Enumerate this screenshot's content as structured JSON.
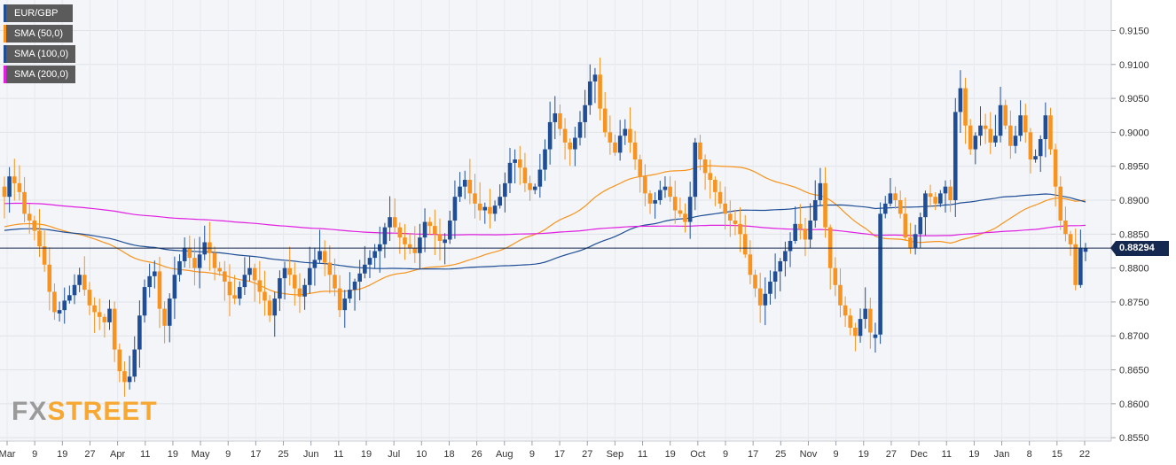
{
  "legend": [
    {
      "label": "EUR/GBP",
      "color": "#1f4e96"
    },
    {
      "label": "SMA (50,0)",
      "color": "#f7931e"
    },
    {
      "label": "SMA (100,0)",
      "color": "#1f4e96"
    },
    {
      "label": "SMA (200,0)",
      "color": "#e020e0"
    }
  ],
  "current_price": "0.88294",
  "logo": {
    "fx": "FX",
    "street": "STREET"
  },
  "chart_data": {
    "type": "candlestick",
    "symbol": "EUR/GBP",
    "timeframe": "daily",
    "ylim": [
      0.8545,
      0.9195
    ],
    "yticks": [
      "0.9150",
      "0.9100",
      "0.9050",
      "0.9000",
      "0.8950",
      "0.8900",
      "0.8850",
      "0.8800",
      "0.8750",
      "0.8700",
      "0.8650",
      "0.8600",
      "0.8550"
    ],
    "xticks": [
      "Mar",
      "9",
      "19",
      "27",
      "Apr",
      "11",
      "19",
      "May",
      "9",
      "17",
      "25",
      "Jun",
      "11",
      "19",
      "Jul",
      "10",
      "18",
      "26",
      "Aug",
      "9",
      "17",
      "27",
      "Sep",
      "11",
      "19",
      "Oct",
      "9",
      "17",
      "25",
      "Nov",
      "9",
      "19",
      "27",
      "Dec",
      "11",
      "19",
      "Jan",
      "8",
      "15",
      "22"
    ],
    "current_price": 0.88294,
    "up_color": "#1f4e96",
    "down_color": "#f7931e",
    "closes": [
      0.8905,
      0.8935,
      0.8925,
      0.8912,
      0.888,
      0.887,
      0.8855,
      0.8832,
      0.8805,
      0.8765,
      0.8735,
      0.8738,
      0.8752,
      0.876,
      0.8775,
      0.879,
      0.8768,
      0.8745,
      0.8735,
      0.8728,
      0.872,
      0.874,
      0.868,
      0.8648,
      0.8632,
      0.864,
      0.868,
      0.873,
      0.8772,
      0.8788,
      0.8795,
      0.874,
      0.8715,
      0.8755,
      0.879,
      0.881,
      0.883,
      0.8815,
      0.88,
      0.882,
      0.8838,
      0.8822,
      0.88,
      0.8795,
      0.878,
      0.876,
      0.8755,
      0.8772,
      0.879,
      0.88,
      0.8782,
      0.8765,
      0.8752,
      0.873,
      0.8755,
      0.8785,
      0.88,
      0.879,
      0.877,
      0.8758,
      0.8775,
      0.88,
      0.8812,
      0.8825,
      0.8808,
      0.879,
      0.877,
      0.8738,
      0.8755,
      0.8768,
      0.878,
      0.8792,
      0.8805,
      0.8815,
      0.8825,
      0.8835,
      0.886,
      0.8875,
      0.886,
      0.8845,
      0.8835,
      0.883,
      0.8822,
      0.8845,
      0.8868,
      0.8862,
      0.885,
      0.884,
      0.8842,
      0.887,
      0.8905,
      0.892,
      0.893,
      0.891,
      0.8895,
      0.8885,
      0.889,
      0.888,
      0.8892,
      0.8905,
      0.8925,
      0.8955,
      0.896,
      0.8948,
      0.8925,
      0.8915,
      0.892,
      0.8945,
      0.8975,
      0.9015,
      0.9028,
      0.9005,
      0.8985,
      0.8975,
      0.8992,
      0.9015,
      0.904,
      0.9075,
      0.9085,
      0.9035,
      0.9,
      0.8985,
      0.897,
      0.8995,
      0.9005,
      0.8985,
      0.896,
      0.8935,
      0.891,
      0.8895,
      0.89,
      0.8915,
      0.892,
      0.8905,
      0.8885,
      0.888,
      0.8868,
      0.8905,
      0.8985,
      0.896,
      0.894,
      0.893,
      0.8912,
      0.8895,
      0.888,
      0.887,
      0.8865,
      0.885,
      0.882,
      0.879,
      0.877,
      0.8745,
      0.8762,
      0.878,
      0.8795,
      0.881,
      0.8825,
      0.884,
      0.8865,
      0.8858,
      0.8842,
      0.887,
      0.89,
      0.8925,
      0.886,
      0.88,
      0.8775,
      0.8745,
      0.873,
      0.8712,
      0.87,
      0.8725,
      0.874,
      0.8705,
      0.8702,
      0.888,
      0.8895,
      0.891,
      0.89,
      0.888,
      0.8845,
      0.883,
      0.885,
      0.8875,
      0.891,
      0.8905,
      0.8895,
      0.891,
      0.892,
      0.89,
      0.903,
      0.9065,
      0.901,
      0.8975,
      0.8995,
      0.901,
      0.9005,
      0.8985,
      0.8995,
      0.904,
      0.901,
      0.898,
      0.8995,
      0.9025,
      0.9,
      0.896,
      0.8965,
      0.899,
      0.9025,
      0.8975,
      0.892,
      0.887,
      0.885,
      0.8835,
      0.8775,
      0.883,
      0.8829
    ]
  }
}
